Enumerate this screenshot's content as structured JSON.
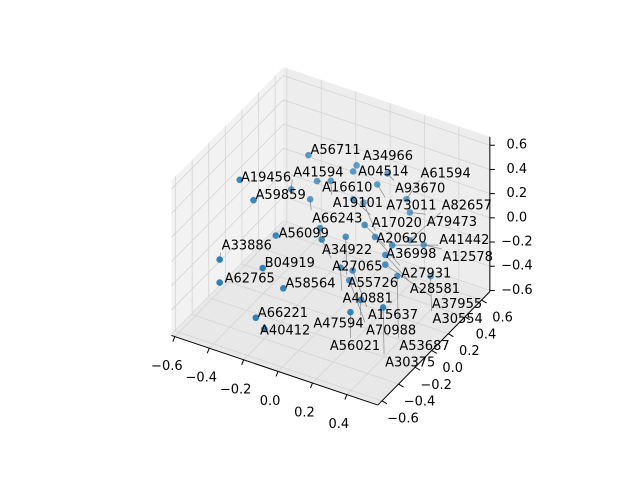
{
  "chart_data": {
    "type": "scatter",
    "projection": "3d",
    "title": "",
    "xlabel": "",
    "ylabel": "",
    "zlabel": "",
    "xlim": [
      -0.62,
      0.58
    ],
    "ylim": [
      -0.65,
      0.7
    ],
    "zlim": [
      -0.61,
      0.67
    ],
    "grid": true,
    "marker_color": "#1f77b4",
    "xticks": [
      "−0.6",
      "−0.4",
      "−0.2",
      "0.0",
      "0.2",
      "0.4"
    ],
    "xtick_values": [
      -0.6,
      -0.4,
      -0.2,
      0.0,
      0.2,
      0.4
    ],
    "yticks": [
      "−0.6",
      "−0.4",
      "−0.2",
      "0.0",
      "0.2",
      "0.4",
      "0.6"
    ],
    "ytick_values": [
      -0.6,
      -0.4,
      -0.2,
      0.0,
      0.2,
      0.4,
      0.6
    ],
    "zticks": [
      "−0.6",
      "−0.4",
      "−0.2",
      "0.0",
      "0.2",
      "0.4",
      "0.6"
    ],
    "ztick_values": [
      -0.6,
      -0.4,
      -0.2,
      0.0,
      0.2,
      0.4,
      0.6
    ],
    "points": [
      {
        "label": "A56711",
        "x": -0.33,
        "y": 0.4,
        "z": 0.29
      },
      {
        "label": "A34966",
        "x": -0.05,
        "y": 0.4,
        "z": 0.34
      },
      {
        "label": "A04514",
        "x": -0.07,
        "y": 0.4,
        "z": 0.28
      },
      {
        "label": "A93670",
        "x": 0.13,
        "y": 0.4,
        "z": 0.36
      },
      {
        "label": "A16610",
        "x": -0.28,
        "y": 0.4,
        "z": 0.1
      },
      {
        "label": "A19101",
        "x": -0.2,
        "y": 0.4,
        "z": 0.14
      },
      {
        "label": "A73011",
        "x": 0.07,
        "y": 0.4,
        "z": 0.24
      },
      {
        "label": "A41594",
        "x": -0.43,
        "y": 0.4,
        "z": -0.04
      },
      {
        "label": "A66243",
        "x": -0.32,
        "y": 0.4,
        "z": -0.07
      },
      {
        "label": "A17020",
        "x": -0.07,
        "y": 0.4,
        "z": 0.05
      },
      {
        "label": "A20620",
        "x": -0.01,
        "y": 0.4,
        "z": 0.05
      },
      {
        "label": "A61594",
        "x": 0.24,
        "y": 0.4,
        "z": 0.2
      },
      {
        "label": "A79473",
        "x": 0.26,
        "y": 0.4,
        "z": 0.1
      },
      {
        "label": "A19456",
        "x": -0.44,
        "y": -0.2,
        "z": 0.45
      },
      {
        "label": "A59859",
        "x": -0.36,
        "y": -0.2,
        "z": 0.32
      },
      {
        "label": "A56099",
        "x": -0.23,
        "y": -0.2,
        "z": 0.09
      },
      {
        "label": "A34922",
        "x": -0.07,
        "y": 0.0,
        "z": 0.09
      },
      {
        "label": "A27065",
        "x": -0.06,
        "y": 0.0,
        "z": 0.0
      },
      {
        "label": "A36998",
        "x": 0.19,
        "y": 0.0,
        "z": 0.24
      },
      {
        "label": "A55726",
        "x": 0.08,
        "y": 0.0,
        "z": 0.09
      },
      {
        "label": "A27931",
        "x": 0.25,
        "y": 0.0,
        "z": 0.17
      },
      {
        "label": "A41442",
        "x": 0.35,
        "y": 0.0,
        "z": 0.15
      },
      {
        "label": "A82657",
        "x": 0.26,
        "y": 0.4,
        "z": -0.13
      },
      {
        "label": "A12578",
        "x": 0.34,
        "y": 0.4,
        "z": -0.13
      },
      {
        "label": "A28581",
        "x": 0.31,
        "y": 0.0,
        "z": 0.05
      },
      {
        "label": "A40881",
        "x": 0.05,
        "y": 0.0,
        "z": -0.18
      },
      {
        "label": "A15637",
        "x": 0.12,
        "y": 0.0,
        "z": -0.17
      },
      {
        "label": "A37955",
        "x": 0.31,
        "y": 0.0,
        "z": -0.03
      },
      {
        "label": "A70988",
        "x": 0.1,
        "y": 0.0,
        "z": -0.26
      },
      {
        "label": "A53687",
        "x": 0.38,
        "y": 0.0,
        "z": -0.09
      },
      {
        "label": "A30554",
        "x": 0.38,
        "y": 0.4,
        "z": -0.37
      },
      {
        "label": "B04919",
        "x": -0.21,
        "y": -0.4,
        "z": -0.03
      },
      {
        "label": "A33886",
        "x": -0.46,
        "y": -0.4,
        "z": -0.08
      },
      {
        "label": "A62765",
        "x": -0.46,
        "y": -0.4,
        "z": -0.27
      },
      {
        "label": "A58564",
        "x": -0.09,
        "y": -0.4,
        "z": -0.14
      },
      {
        "label": "A47594",
        "x": 0.36,
        "y": -0.4,
        "z": -0.02
      },
      {
        "label": "A30375",
        "x": 0.49,
        "y": -0.4,
        "z": -0.02
      },
      {
        "label": "A56021",
        "x": 0.3,
        "y": -0.4,
        "z": -0.15
      },
      {
        "label": "A66221",
        "x": -0.25,
        "y": -0.4,
        "z": -0.46
      },
      {
        "label": "A40412",
        "x": -0.2,
        "y": -0.4,
        "z": -0.53
      }
    ]
  }
}
